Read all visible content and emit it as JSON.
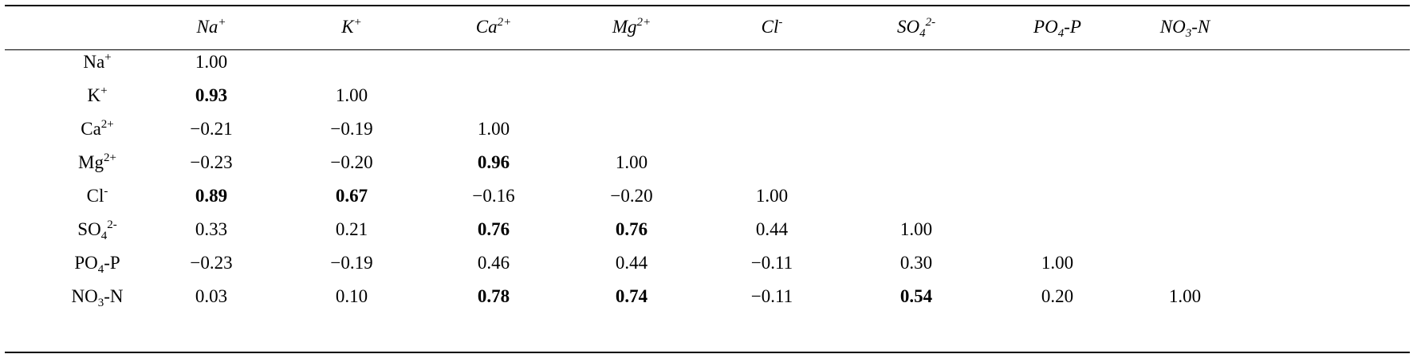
{
  "table": {
    "columns": [
      {
        "base": "Na",
        "sub": "",
        "sup": "+",
        "tail": ""
      },
      {
        "base": "K",
        "sub": "",
        "sup": "+",
        "tail": ""
      },
      {
        "base": "Ca",
        "sub": "",
        "sup": "2+",
        "tail": ""
      },
      {
        "base": "Mg",
        "sub": "",
        "sup": "2+",
        "tail": ""
      },
      {
        "base": "Cl",
        "sub": "",
        "sup": "-",
        "tail": ""
      },
      {
        "base": "SO",
        "sub": "4",
        "sup": "2-",
        "tail": ""
      },
      {
        "base": "PO",
        "sub": "4",
        "sup": "",
        "tail": "-P"
      },
      {
        "base": "NO",
        "sub": "3",
        "sup": "",
        "tail": "-N"
      }
    ],
    "rows": [
      {
        "label": {
          "base": "Na",
          "sub": "",
          "sup": "+",
          "tail": ""
        },
        "cells": [
          {
            "v": "1.00",
            "b": false
          }
        ]
      },
      {
        "label": {
          "base": "K",
          "sub": "",
          "sup": "+",
          "tail": ""
        },
        "cells": [
          {
            "v": "0.93",
            "b": true
          },
          {
            "v": "1.00",
            "b": false
          }
        ]
      },
      {
        "label": {
          "base": "Ca",
          "sub": "",
          "sup": "2+",
          "tail": ""
        },
        "cells": [
          {
            "v": "−0.21",
            "b": false
          },
          {
            "v": "−0.19",
            "b": false
          },
          {
            "v": "1.00",
            "b": false
          }
        ]
      },
      {
        "label": {
          "base": "Mg",
          "sub": "",
          "sup": "2+",
          "tail": ""
        },
        "cells": [
          {
            "v": "−0.23",
            "b": false
          },
          {
            "v": "−0.20",
            "b": false
          },
          {
            "v": "0.96",
            "b": true
          },
          {
            "v": "1.00",
            "b": false
          }
        ]
      },
      {
        "label": {
          "base": "Cl",
          "sub": "",
          "sup": "-",
          "tail": ""
        },
        "cells": [
          {
            "v": "0.89",
            "b": true
          },
          {
            "v": "0.67",
            "b": true
          },
          {
            "v": "−0.16",
            "b": false
          },
          {
            "v": "−0.20",
            "b": false
          },
          {
            "v": "1.00",
            "b": false
          }
        ]
      },
      {
        "label": {
          "base": "SO",
          "sub": "4",
          "sup": "2-",
          "tail": ""
        },
        "cells": [
          {
            "v": "0.33",
            "b": false
          },
          {
            "v": "0.21",
            "b": false
          },
          {
            "v": "0.76",
            "b": true
          },
          {
            "v": "0.76",
            "b": true
          },
          {
            "v": "0.44",
            "b": false
          },
          {
            "v": "1.00",
            "b": false
          }
        ]
      },
      {
        "label": {
          "base": "PO",
          "sub": "4",
          "sup": "",
          "tail": "-P"
        },
        "cells": [
          {
            "v": "−0.23",
            "b": false
          },
          {
            "v": "−0.19",
            "b": false
          },
          {
            "v": "0.46",
            "b": false
          },
          {
            "v": "0.44",
            "b": false
          },
          {
            "v": "−0.11",
            "b": false
          },
          {
            "v": "0.30",
            "b": false
          },
          {
            "v": "1.00",
            "b": false
          }
        ]
      },
      {
        "label": {
          "base": "NO",
          "sub": "3",
          "sup": "",
          "tail": "-N"
        },
        "cells": [
          {
            "v": "0.03",
            "b": false
          },
          {
            "v": "0.10",
            "b": false
          },
          {
            "v": "0.78",
            "b": true
          },
          {
            "v": "0.74",
            "b": true
          },
          {
            "v": "−0.11",
            "b": false
          },
          {
            "v": "0.54",
            "b": true
          },
          {
            "v": "0.20",
            "b": false
          },
          {
            "v": "1.00",
            "b": false
          }
        ]
      }
    ]
  }
}
